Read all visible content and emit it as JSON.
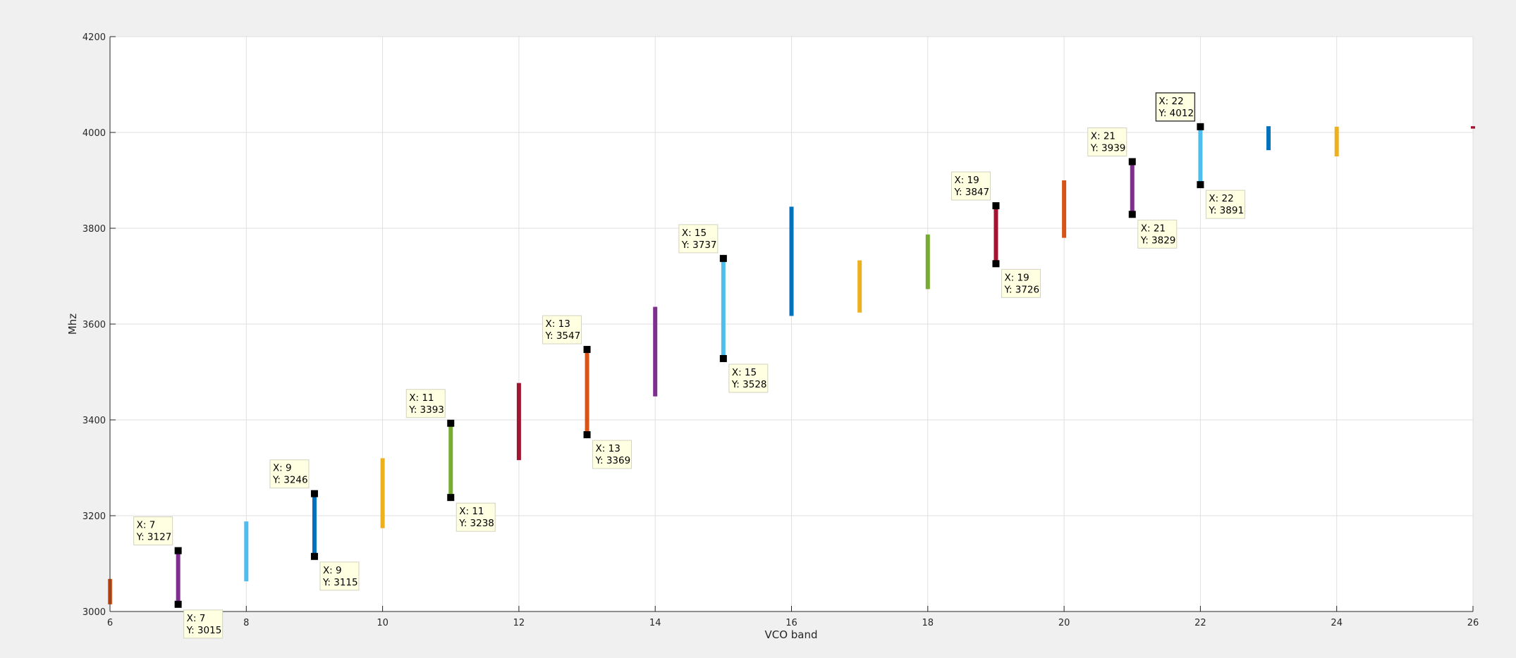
{
  "chart_data": {
    "type": "range-bar",
    "title": "",
    "xlabel": "VCO band",
    "ylabel": "Mhz",
    "xlim": [
      6,
      26
    ],
    "ylim": [
      3000,
      4200
    ],
    "xticks": [
      6,
      8,
      10,
      12,
      14,
      16,
      18,
      20,
      22,
      24,
      26
    ],
    "yticks": [
      3000,
      3200,
      3400,
      3600,
      3800,
      4000,
      4200
    ],
    "grid": true,
    "background": "#f0f0f0",
    "plot_background": "#ffffff",
    "segments": [
      {
        "x": 6,
        "y_min": 3015,
        "y_max": 3068,
        "color": "#d95319"
      },
      {
        "x": 7,
        "y_min": 3015,
        "y_max": 3127,
        "color": "#7e2f8e"
      },
      {
        "x": 8,
        "y_min": 3063,
        "y_max": 3188,
        "color": "#4dbeee"
      },
      {
        "x": 9,
        "y_min": 3115,
        "y_max": 3246,
        "color": "#0072bd"
      },
      {
        "x": 10,
        "y_min": 3174,
        "y_max": 3320,
        "color": "#edb120"
      },
      {
        "x": 11,
        "y_min": 3238,
        "y_max": 3393,
        "color": "#77ac30"
      },
      {
        "x": 12,
        "y_min": 3316,
        "y_max": 3477,
        "color": "#a2142f"
      },
      {
        "x": 13,
        "y_min": 3369,
        "y_max": 3547,
        "color": "#d95319"
      },
      {
        "x": 14,
        "y_min": 3449,
        "y_max": 3636,
        "color": "#7e2f8e"
      },
      {
        "x": 15,
        "y_min": 3528,
        "y_max": 3737,
        "color": "#4dbeee"
      },
      {
        "x": 16,
        "y_min": 3617,
        "y_max": 3845,
        "color": "#0072bd"
      },
      {
        "x": 17,
        "y_min": 3624,
        "y_max": 3733,
        "color": "#edb120"
      },
      {
        "x": 18,
        "y_min": 3673,
        "y_max": 3787,
        "color": "#77ac30"
      },
      {
        "x": 19,
        "y_min": 3726,
        "y_max": 3847,
        "color": "#a2142f"
      },
      {
        "x": 20,
        "y_min": 3780,
        "y_max": 3900,
        "color": "#d95319"
      },
      {
        "x": 21,
        "y_min": 3829,
        "y_max": 3939,
        "color": "#7e2f8e"
      },
      {
        "x": 22,
        "y_min": 3891,
        "y_max": 4012,
        "color": "#4dbeee"
      },
      {
        "x": 23,
        "y_min": 3963,
        "y_max": 4013,
        "color": "#0072bd"
      },
      {
        "x": 24,
        "y_min": 3950,
        "y_max": 4012,
        "color": "#edb120"
      },
      {
        "x": 26,
        "y_min": 4008,
        "y_max": 4013,
        "color": "#a2142f"
      }
    ],
    "datatips": [
      {
        "x": 7,
        "y": 3127,
        "line1": "X: 7",
        "line2": "Y: 3127",
        "side": "upper-left"
      },
      {
        "x": 7,
        "y": 3015,
        "line1": "X: 7",
        "line2": "Y: 3015",
        "side": "lower-right"
      },
      {
        "x": 9,
        "y": 3246,
        "line1": "X: 9",
        "line2": "Y: 3246",
        "side": "upper-left"
      },
      {
        "x": 9,
        "y": 3115,
        "line1": "X: 9",
        "line2": "Y: 3115",
        "side": "lower-right"
      },
      {
        "x": 11,
        "y": 3393,
        "line1": "X: 11",
        "line2": "Y: 3393",
        "side": "upper-left"
      },
      {
        "x": 11,
        "y": 3238,
        "line1": "X: 11",
        "line2": "Y: 3238",
        "side": "lower-right"
      },
      {
        "x": 13,
        "y": 3547,
        "line1": "X: 13",
        "line2": "Y: 3547",
        "side": "upper-left"
      },
      {
        "x": 13,
        "y": 3369,
        "line1": "X: 13",
        "line2": "Y: 3369",
        "side": "lower-right"
      },
      {
        "x": 15,
        "y": 3737,
        "line1": "X: 15",
        "line2": "Y: 3737",
        "side": "upper-left"
      },
      {
        "x": 15,
        "y": 3528,
        "line1": "X: 15",
        "line2": "Y: 3528",
        "side": "lower-right"
      },
      {
        "x": 19,
        "y": 3847,
        "line1": "X: 19",
        "line2": "Y: 3847",
        "side": "upper-left"
      },
      {
        "x": 19,
        "y": 3726,
        "line1": "X: 19",
        "line2": "Y: 3726",
        "side": "lower-right"
      },
      {
        "x": 21,
        "y": 3939,
        "line1": "X: 21",
        "line2": "Y: 3939",
        "side": "upper-left"
      },
      {
        "x": 21,
        "y": 3829,
        "line1": "X: 21",
        "line2": "Y: 3829",
        "side": "lower-right"
      },
      {
        "x": 22,
        "y": 4012,
        "line1": "X: 22",
        "line2": "Y: 4012",
        "side": "upper-left",
        "selected": true
      },
      {
        "x": 22,
        "y": 3891,
        "line1": "X: 22",
        "line2": "Y: 3891",
        "side": "lower-right"
      }
    ]
  }
}
